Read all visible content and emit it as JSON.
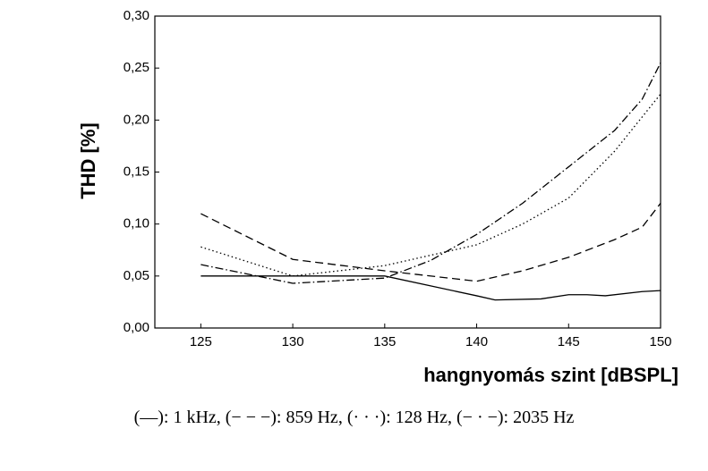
{
  "chart_data": {
    "type": "line",
    "x_label": "hangnyomás szint [dBSPL]",
    "y_label": "THD [%]",
    "xlim": [
      122.5,
      150
    ],
    "xticks": [
      125,
      130,
      135,
      140,
      145,
      150
    ],
    "ylim": [
      0,
      0.3
    ],
    "yticks": [
      {
        "value": 0,
        "label": "0,00"
      },
      {
        "value": 0.05,
        "label": "0,05"
      },
      {
        "value": 0.1,
        "label": "0,10"
      },
      {
        "value": 0.15,
        "label": "0,15"
      },
      {
        "value": 0.2,
        "label": "0,20"
      },
      {
        "value": 0.25,
        "label": "0,25"
      },
      {
        "value": 0.3,
        "label": "0,30"
      }
    ],
    "series": [
      {
        "name": "(—): 1 kHz",
        "color": "#000000",
        "dash": "none",
        "x": [
          125,
          130,
          135,
          140,
          141,
          143.5,
          145,
          146,
          147,
          149,
          150
        ],
        "values": [
          0.05,
          0.05,
          0.05,
          0.031,
          0.027,
          0.028,
          0.032,
          0.032,
          0.031,
          0.035,
          0.036
        ]
      },
      {
        "name": "(− − −): 859 Hz",
        "color": "#000000",
        "dash": "9 5",
        "x": [
          125,
          130,
          135,
          140,
          142.5,
          145,
          147.5,
          149,
          150
        ],
        "values": [
          0.11,
          0.066,
          0.055,
          0.045,
          0.055,
          0.068,
          0.085,
          0.097,
          0.12
        ]
      },
      {
        "name": "(· · ·): 128 Hz",
        "color": "#000000",
        "dash": "1.5 3",
        "x": [
          125,
          130,
          135,
          137.5,
          140,
          142.5,
          145,
          147.5,
          150
        ],
        "values": [
          0.078,
          0.05,
          0.06,
          0.07,
          0.08,
          0.1,
          0.125,
          0.17,
          0.225
        ]
      },
      {
        "name": "(− · −): 2035 Hz",
        "color": "#000000",
        "dash": "9 3 1.5 3",
        "x": [
          125,
          130,
          135,
          137.5,
          140,
          142.5,
          145,
          147.5,
          149,
          150
        ],
        "values": [
          0.061,
          0.043,
          0.048,
          0.065,
          0.09,
          0.12,
          0.155,
          0.19,
          0.22,
          0.255
        ]
      }
    ]
  }
}
